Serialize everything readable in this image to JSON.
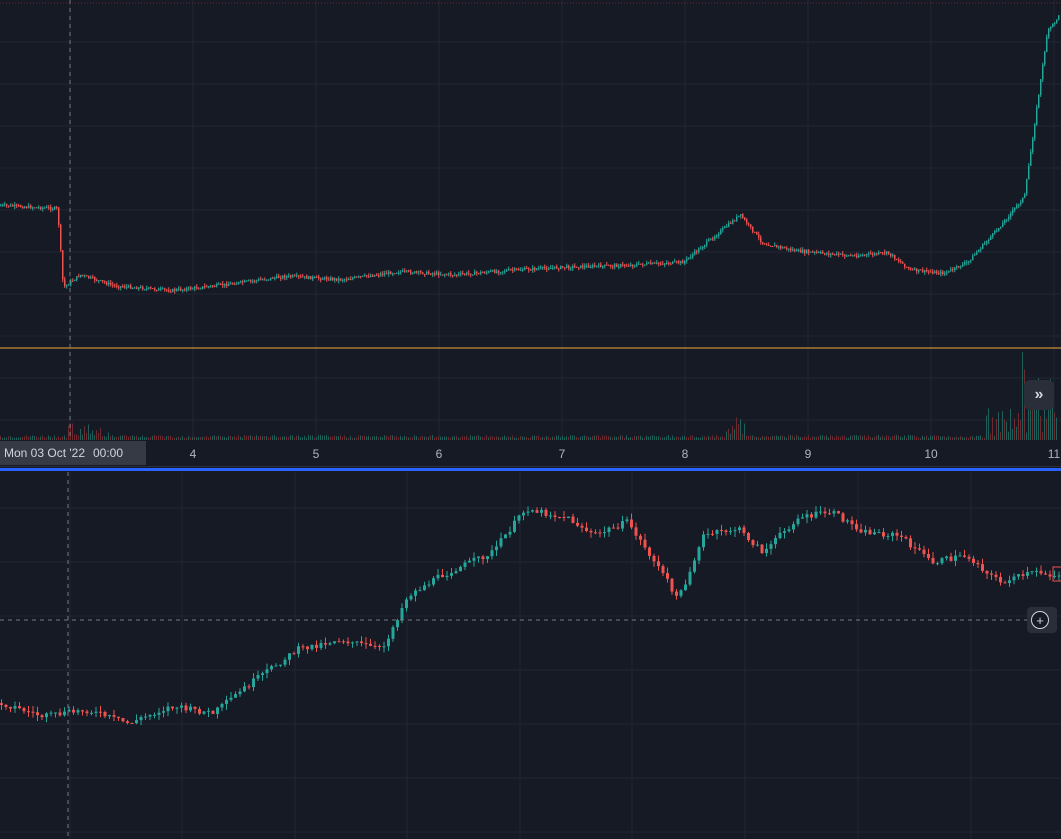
{
  "colors": {
    "background": "#161a25",
    "grid": "#222633",
    "up": "#26a69a",
    "down": "#ef5350",
    "price_line": "#f2a93b",
    "separator": "#2962ff",
    "crosshair": "#787b86"
  },
  "crosshair": {
    "date": "Mon 03 Oct '22",
    "time": "00:00"
  },
  "icons": {
    "scroll_right": "double-chevron-right-icon",
    "add": "plus-circle-icon"
  },
  "chart_data": [
    {
      "type": "candlestick",
      "panel": "top",
      "x_axis": {
        "type": "date",
        "tick_labels": [
          "4",
          "5",
          "6",
          "7",
          "8",
          "9",
          "10",
          "11"
        ]
      },
      "series": [
        {
          "values": [
            [
              0.0,
              60.0
            ],
            [
              0.5,
              59.0
            ],
            [
              0.55,
              34.0
            ],
            [
              0.7,
              38.0
            ],
            [
              1.0,
              34.5
            ],
            [
              1.5,
              33.0
            ],
            [
              2.0,
              35.0
            ],
            [
              2.5,
              37.5
            ],
            [
              3.0,
              36.5
            ],
            [
              3.5,
              39.0
            ],
            [
              4.0,
              38.0
            ],
            [
              4.5,
              39.5
            ],
            [
              5.0,
              40.5
            ],
            [
              5.5,
              41.0
            ],
            [
              6.0,
              42.0
            ],
            [
              6.5,
              57.0
            ],
            [
              6.7,
              48.0
            ],
            [
              7.0,
              45.5
            ],
            [
              7.5,
              44.0
            ],
            [
              7.8,
              45.0
            ],
            [
              8.0,
              39.5
            ],
            [
              8.3,
              38.5
            ],
            [
              8.5,
              42.0
            ],
            [
              8.8,
              54.0
            ],
            [
              9.0,
              63.0
            ],
            [
              9.2,
              115.0
            ],
            [
              9.3,
              120.0
            ]
          ]
        }
      ],
      "volume_present": true
    },
    {
      "type": "candlestick",
      "panel": "bottom",
      "x_axis": {
        "type": "date",
        "tick_labels": []
      },
      "series": [
        {
          "values": [
            [
              0.0,
              28.0
            ],
            [
              0.5,
              24.0
            ],
            [
              1.0,
              26.0
            ],
            [
              1.5,
              22.0
            ],
            [
              2.0,
              27.0
            ],
            [
              2.5,
              25.0
            ],
            [
              3.0,
              35.0
            ],
            [
              3.5,
              44.0
            ],
            [
              4.0,
              47.0
            ],
            [
              4.5,
              44.0
            ],
            [
              4.8,
              60.0
            ],
            [
              5.2,
              66.0
            ],
            [
              5.8,
              73.0
            ],
            [
              6.2,
              86.0
            ],
            [
              6.7,
              83.0
            ],
            [
              7.0,
              78.0
            ],
            [
              7.4,
              82.0
            ],
            [
              7.8,
              67.0
            ],
            [
              8.0,
              59.0
            ],
            [
              8.3,
              78.0
            ],
            [
              8.7,
              80.0
            ],
            [
              9.0,
              73.0
            ],
            [
              9.4,
              83.0
            ],
            [
              9.8,
              85.0
            ],
            [
              10.2,
              79.0
            ],
            [
              10.6,
              78.0
            ],
            [
              11.0,
              70.0
            ],
            [
              11.4,
              72.0
            ],
            [
              11.8,
              64.0
            ],
            [
              12.2,
              67.0
            ],
            [
              12.5,
              66.0
            ]
          ]
        }
      ]
    }
  ]
}
